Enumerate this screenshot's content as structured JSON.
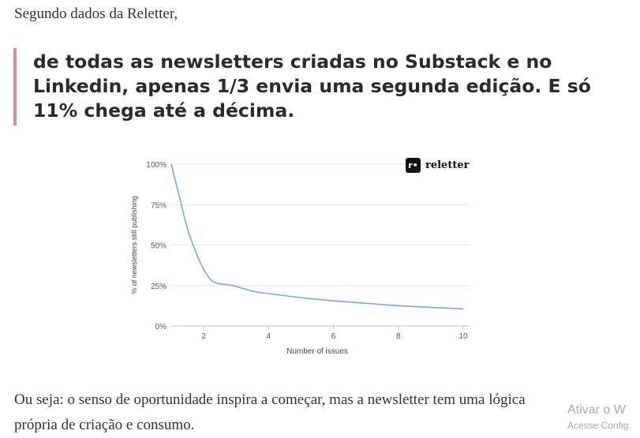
{
  "intro_text": "Segundo dados da Reletter,",
  "quote_text": "de todas as newsletters criadas no Substack e no Linkedin, apenas 1/3 envia uma segunda edição. E só 11% chega até a décima.",
  "chart_data": {
    "type": "line",
    "brand": "reletter",
    "xlabel": "Number of issues",
    "ylabel": "% of newsletters still publishing",
    "xlim": [
      1,
      10
    ],
    "ylim": [
      0,
      100
    ],
    "x_ticks": [
      2,
      4,
      6,
      8,
      10
    ],
    "y_ticks": [
      "0%",
      "25%",
      "50%",
      "75%",
      "100%"
    ],
    "y_tick_values": [
      0,
      25,
      50,
      75,
      100
    ],
    "grid": true,
    "line_color": "#7aa9dc",
    "series": [
      {
        "x": [
          1,
          1.25,
          1.5,
          1.75,
          2,
          2.25,
          2.5,
          2.75,
          3,
          3.5,
          4,
          5,
          6,
          7,
          8,
          9,
          10
        ],
        "y": [
          100,
          80,
          60,
          46,
          35,
          28,
          26,
          25.5,
          24.5,
          21.5,
          20,
          17.5,
          15.5,
          14,
          12.5,
          11.5,
          10.5
        ]
      }
    ]
  },
  "outro_text": "Ou seja: o senso de oportunidade inspira a começar, mas a newsletter tem uma lógica própria de criação e consumo.",
  "watermark": {
    "title": "Ativar o W",
    "subtitle": "Acesse Config"
  }
}
